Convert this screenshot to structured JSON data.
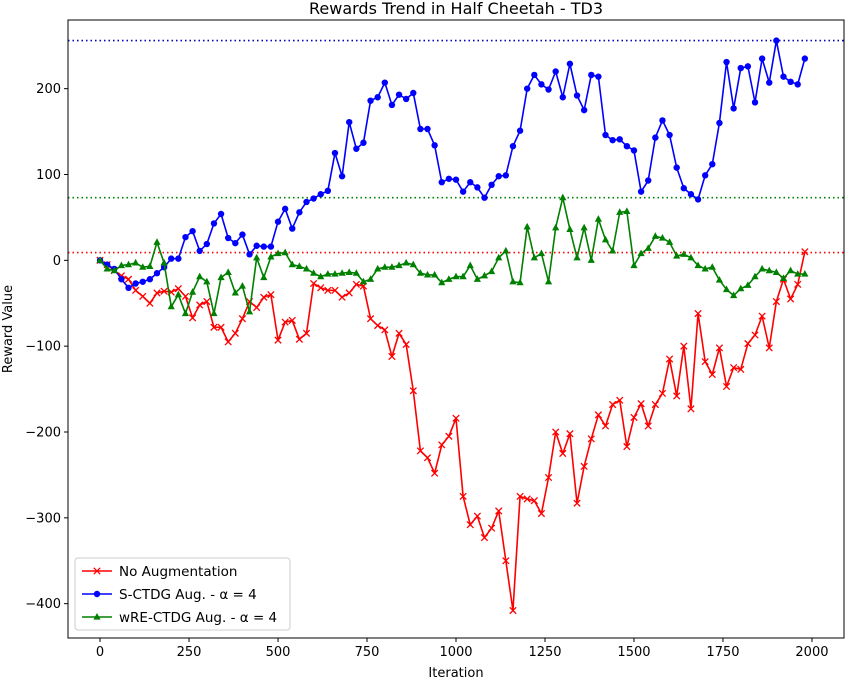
{
  "chart_data": {
    "type": "line",
    "title": "Rewards Trend in Half Cheetah - TD3",
    "xlabel": "Iteration",
    "ylabel": "Reward Value",
    "xlim": [
      -90,
      2090
    ],
    "ylim": [
      -440,
      280
    ],
    "xticks": [
      0,
      250,
      500,
      750,
      1000,
      1250,
      1500,
      1750,
      2000
    ],
    "yticks": [
      -400,
      -300,
      -200,
      -100,
      0,
      100,
      200
    ],
    "grid": false,
    "legend_position": "lower-left",
    "x": [
      0,
      20,
      40,
      60,
      80,
      100,
      120,
      140,
      160,
      180,
      200,
      220,
      240,
      260,
      280,
      300,
      320,
      340,
      360,
      380,
      400,
      420,
      440,
      460,
      480,
      500,
      520,
      540,
      560,
      580,
      600,
      620,
      640,
      660,
      680,
      700,
      720,
      740,
      760,
      780,
      800,
      820,
      840,
      860,
      880,
      900,
      920,
      940,
      960,
      980,
      1000,
      1020,
      1040,
      1060,
      1080,
      1100,
      1120,
      1140,
      1160,
      1180,
      1200,
      1220,
      1240,
      1260,
      1280,
      1300,
      1320,
      1340,
      1360,
      1380,
      1400,
      1420,
      1440,
      1460,
      1480,
      1500,
      1520,
      1540,
      1560,
      1580,
      1600,
      1620,
      1640,
      1660,
      1680,
      1700,
      1720,
      1740,
      1760,
      1780,
      1800,
      1820,
      1840,
      1860,
      1880,
      1900,
      1920,
      1940,
      1960,
      1980
    ],
    "series": [
      {
        "name": "No Augmentation",
        "color": "#ff0000",
        "marker": "x",
        "values": [
          0,
          -5,
          -12,
          -18,
          -22,
          -35,
          -42,
          -50,
          -38,
          -36,
          -37,
          -33,
          -42,
          -67,
          -52,
          -48,
          -78,
          -78,
          -95,
          -85,
          -68,
          -48,
          -55,
          -43,
          -40,
          -93,
          -72,
          -70,
          -92,
          -85,
          -27,
          -32,
          -35,
          -35,
          -43,
          -38,
          -28,
          -30,
          -68,
          -76,
          -81,
          -112,
          -85,
          -98,
          -152,
          -222,
          -230,
          -248,
          -215,
          -205,
          -184,
          -275,
          -308,
          -298,
          -323,
          -312,
          -292,
          -350,
          -408,
          -275,
          -278,
          -280,
          -295,
          -253,
          -200,
          -225,
          -202,
          -283,
          -240,
          -208,
          -180,
          -193,
          -168,
          -163,
          -217,
          -183,
          -167,
          -193,
          -168,
          -155,
          -115,
          -158,
          -100,
          -173,
          -62,
          -118,
          -133,
          -102,
          -147,
          -125,
          -127,
          -97,
          -87,
          -65,
          -102,
          -48,
          -22,
          -45,
          -28,
          10
        ]
      },
      {
        "name": "S-CTDG Aug. - α = 4",
        "color": "#0000ff",
        "marker": "o",
        "values": [
          0,
          -5,
          -10,
          -22,
          -32,
          -27,
          -25,
          -22,
          -15,
          -8,
          2,
          2,
          27,
          34,
          11,
          19,
          43,
          54,
          26,
          20,
          30,
          7,
          17,
          16,
          16,
          45,
          60,
          37,
          56,
          68,
          72,
          77,
          81,
          125,
          98,
          161,
          130,
          137,
          186,
          190,
          207,
          181,
          193,
          188,
          195,
          153,
          153,
          134,
          91,
          95,
          94,
          80,
          91,
          85,
          73,
          88,
          98,
          99,
          133,
          151,
          200,
          216,
          205,
          199,
          220,
          190,
          229,
          192,
          175,
          216,
          214,
          146,
          140,
          141,
          133,
          128,
          80,
          93,
          143,
          163,
          146,
          108,
          84,
          77,
          71,
          99,
          112,
          160,
          231,
          177,
          224,
          226,
          184,
          235,
          207,
          256,
          214,
          208,
          205,
          235
        ]
      },
      {
        "name": "wRE-CTDG Aug. - α = 4",
        "color": "#008000",
        "marker": "^",
        "values": [
          0,
          -10,
          -12,
          -6,
          -5,
          -3,
          -8,
          -7,
          21,
          -3,
          -54,
          -40,
          -62,
          -37,
          -19,
          -25,
          -62,
          -20,
          -14,
          -38,
          -30,
          -60,
          3,
          -20,
          4,
          8,
          9,
          -5,
          -7,
          -10,
          -15,
          -19,
          -16,
          -16,
          -15,
          -14,
          -15,
          -25,
          -22,
          -10,
          -8,
          -8,
          -6,
          -3,
          -5,
          -15,
          -17,
          -17,
          -26,
          -22,
          -19,
          -19,
          -6,
          -22,
          -18,
          -13,
          3,
          11,
          -25,
          -26,
          39,
          3,
          8,
          -25,
          38,
          73,
          36,
          3,
          38,
          0,
          48,
          24,
          11,
          56,
          57,
          -6,
          8,
          14,
          28,
          26,
          21,
          5,
          7,
          3,
          -6,
          -10,
          -8,
          -23,
          -34,
          -41,
          -33,
          -29,
          -19,
          -10,
          -12,
          -14,
          -21,
          -12,
          -16,
          -16
        ]
      }
    ],
    "reference_lines": [
      {
        "y": 256,
        "color": "#0000bf",
        "style": "dotted"
      },
      {
        "y": 73,
        "color": "#008000",
        "style": "dotted"
      },
      {
        "y": 9,
        "color": "#ff0000",
        "style": "dotted"
      }
    ]
  }
}
